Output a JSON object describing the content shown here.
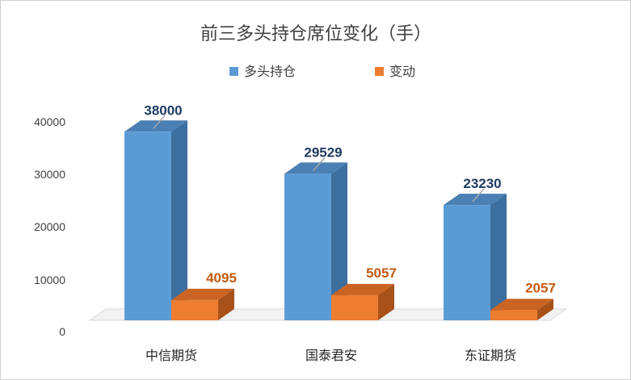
{
  "chart_data": {
    "type": "bar",
    "title": "前三多头持仓席位变化（手）",
    "categories": [
      "中信期货",
      "国泰君安",
      "东证期货"
    ],
    "series": [
      {
        "name": "多头持仓",
        "values": [
          38000,
          29529,
          23230
        ],
        "color": "#5b9bd5",
        "side_color": "#3d6f9e",
        "top_color": "#4a80b4",
        "label_color": "#1f3b64"
      },
      {
        "name": "变动",
        "values": [
          4095,
          5057,
          2057
        ],
        "color": "#ed7d31",
        "side_color": "#a8521a",
        "top_color": "#c96422",
        "label_color": "#c55a11"
      }
    ],
    "yticks": [
      "0",
      "10000",
      "20000",
      "30000",
      "40000"
    ],
    "ylim": [
      0,
      40000
    ],
    "grid": false,
    "legend_position": "top"
  }
}
